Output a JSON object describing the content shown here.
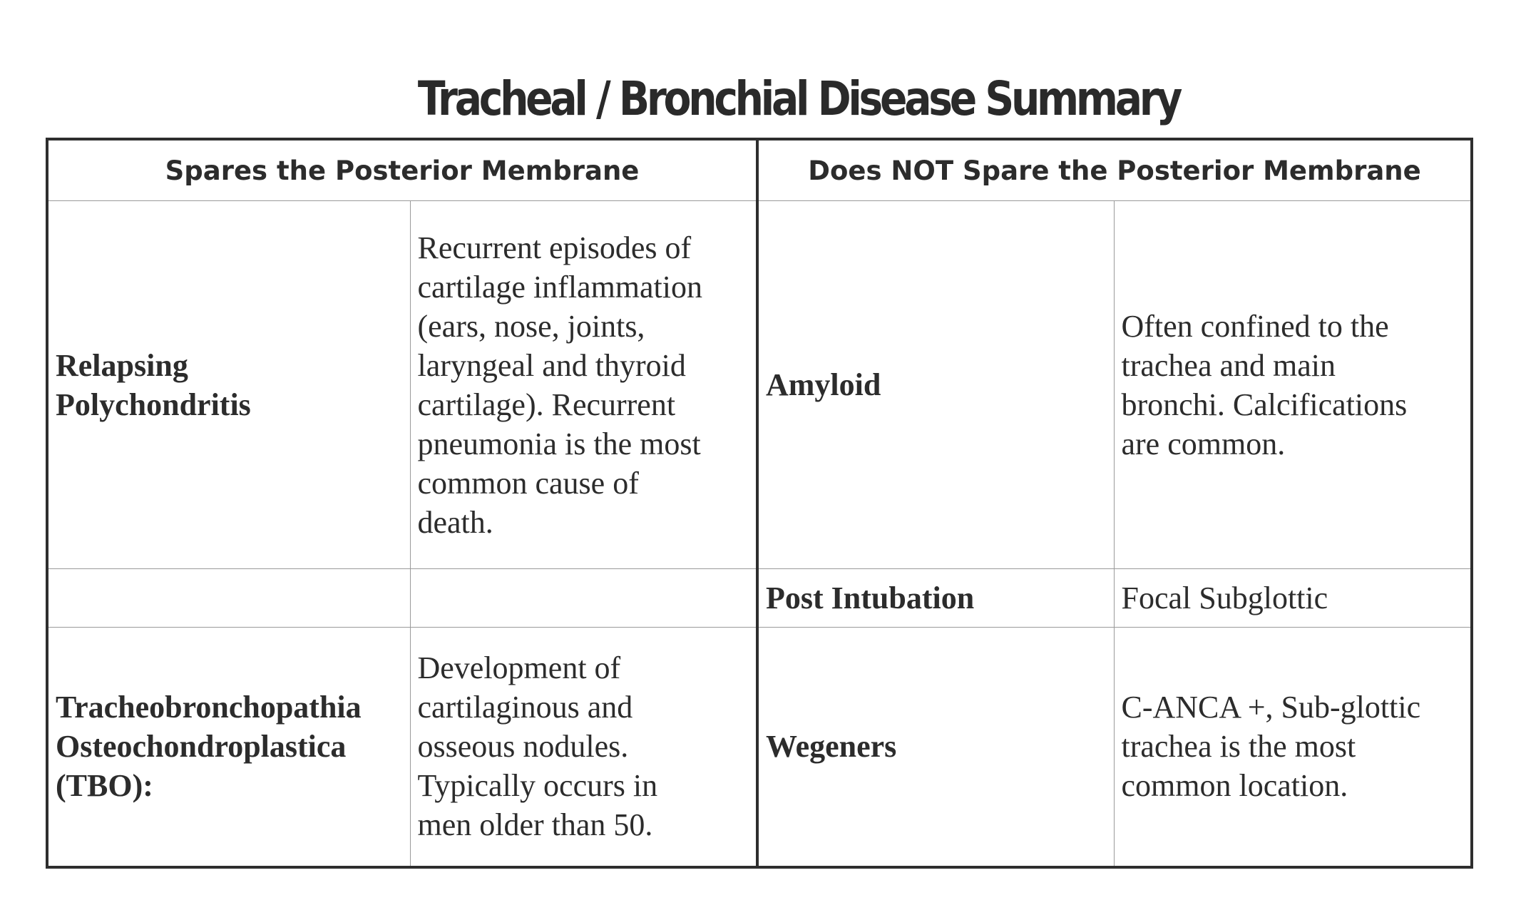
{
  "title": "Tracheal / Bronchial Disease Summary",
  "columns": {
    "spares": "Spares the Posterior Membrane",
    "not_spares": "Does NOT Spare the Posterior Membrane"
  },
  "rows": [
    {
      "left_name": [
        "Relapsing",
        "Polychondritis"
      ],
      "left_desc": [
        "Recurrent episodes of",
        "cartilage inflammation",
        "(ears, nose, joints,",
        "laryngeal and thyroid",
        "cartilage).  Recurrent",
        "pneumonia is the most",
        "common cause of",
        "death."
      ],
      "right_name": [
        "Amyloid"
      ],
      "right_desc": [
        "Often confined to the",
        "trachea and main",
        "bronchi.  Calcifications",
        "are common."
      ]
    },
    {
      "left_name": [],
      "left_desc": [],
      "right_name": [
        "Post Intubation"
      ],
      "right_desc": [
        "Focal Subglottic"
      ]
    },
    {
      "left_name": [
        "Tracheobronchopathia",
        "Osteochondroplastica",
        "(TBO):"
      ],
      "left_desc": [
        "Development of",
        "cartilaginous and",
        "osseous nodules.",
        "Typically occurs in",
        "men older than 50."
      ],
      "right_name": [
        "Wegeners"
      ],
      "right_desc": [
        "C-ANCA +, Sub-glottic",
        "trachea is the most",
        "common location."
      ]
    }
  ]
}
